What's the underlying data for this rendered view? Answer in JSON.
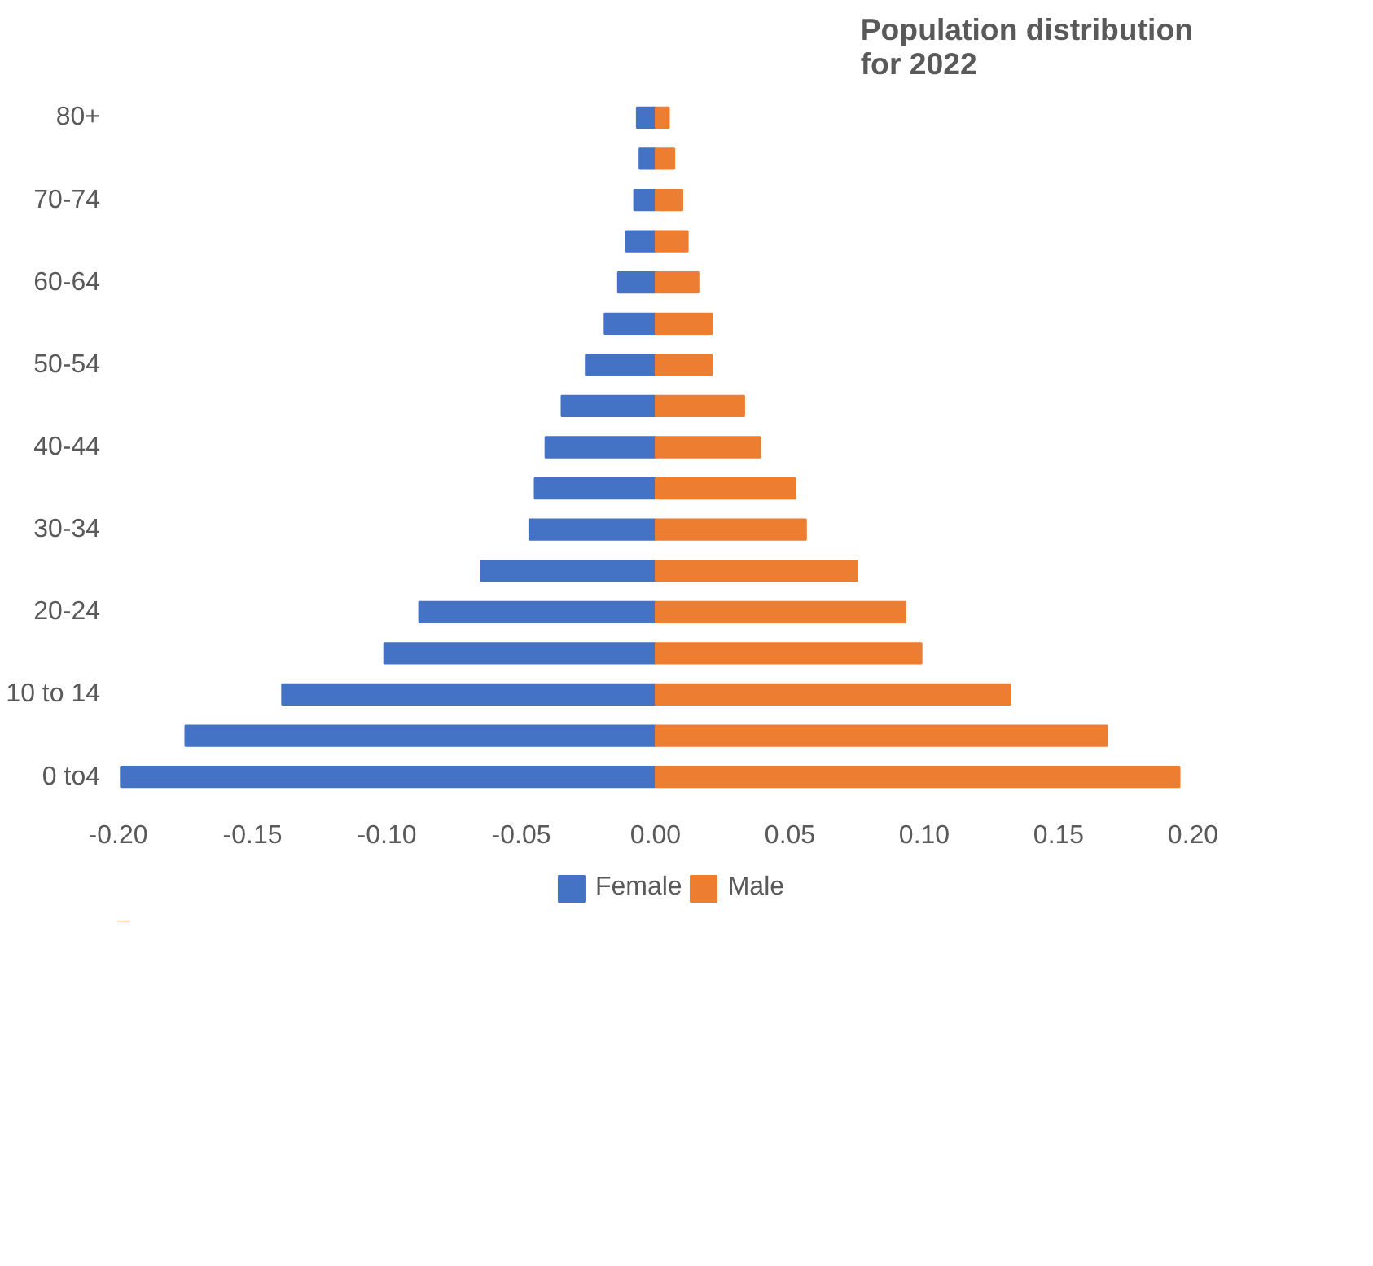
{
  "chart_data": {
    "type": "bar",
    "orientation": "horizontal",
    "stacked": true,
    "title": "Population distribution\nfor 2022",
    "categories": [
      "80+",
      null,
      "70-74",
      null,
      "60-64",
      null,
      "50-54",
      null,
      "40-44",
      null,
      "30-34",
      null,
      "20-24",
      null,
      "10 to 14",
      null,
      "0 to4"
    ],
    "series": [
      {
        "name": "Female",
        "color": "#4472c4",
        "values": [
          -0.007,
          -0.006,
          -0.008,
          -0.011,
          -0.014,
          -0.019,
          -0.026,
          -0.035,
          -0.041,
          -0.045,
          -0.047,
          -0.065,
          -0.088,
          -0.101,
          -0.139,
          -0.175,
          -0.199
        ]
      },
      {
        "name": "Male",
        "color": "#ed7d31",
        "values": [
          0.005,
          0.007,
          0.01,
          0.012,
          0.016,
          0.021,
          0.021,
          0.033,
          0.039,
          0.052,
          0.056,
          0.075,
          0.093,
          0.099,
          0.132,
          0.168,
          0.195
        ]
      }
    ],
    "xlim": [
      -0.2,
      0.2
    ],
    "xticks": [
      {
        "value": -0.2,
        "label": "-0.20"
      },
      {
        "value": -0.15,
        "label": "-0.15"
      },
      {
        "value": -0.1,
        "label": "-0.10"
      },
      {
        "value": -0.05,
        "label": "-0.05"
      },
      {
        "value": 0,
        "label": "0.00"
      },
      {
        "value": 0.05,
        "label": "0.05"
      },
      {
        "value": 0.1,
        "label": "0.10"
      },
      {
        "value": 0.15,
        "label": "0.15"
      },
      {
        "value": 0.2,
        "label": "0.20"
      }
    ],
    "grid": false,
    "legend": "bottom"
  }
}
